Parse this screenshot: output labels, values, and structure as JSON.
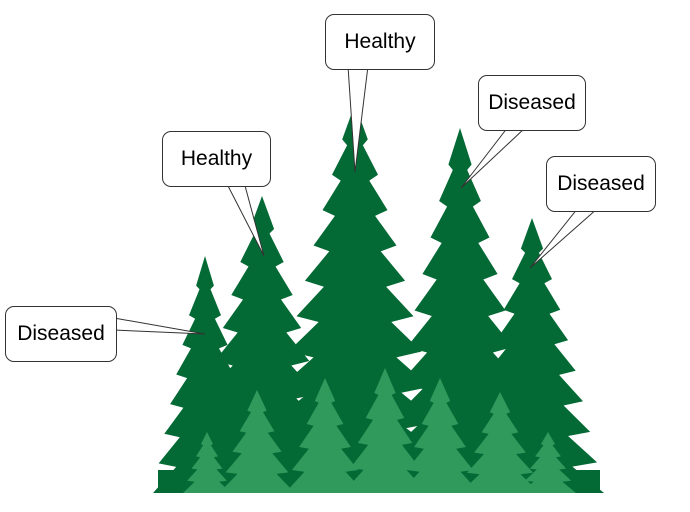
{
  "colors": {
    "tree_dark": "#046a35",
    "tree_light": "#2f9a5c",
    "callout_border": "#333333",
    "callout_fill": "#ffffff",
    "text": "#000000"
  },
  "labels": [
    {
      "id": "tree-1",
      "text": "Diseased"
    },
    {
      "id": "tree-2",
      "text": "Healthy"
    },
    {
      "id": "tree-3",
      "text": "Healthy"
    },
    {
      "id": "tree-4",
      "text": "Diseased"
    },
    {
      "id": "tree-5",
      "text": "Diseased"
    }
  ]
}
